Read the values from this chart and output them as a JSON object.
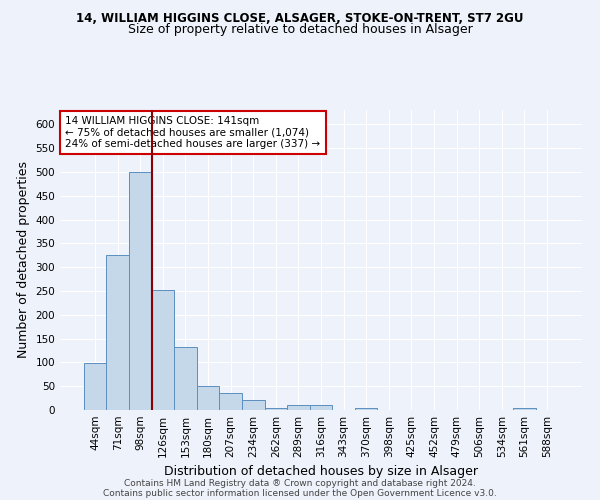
{
  "title_line1": "14, WILLIAM HIGGINS CLOSE, ALSAGER, STOKE-ON-TRENT, ST7 2GU",
  "title_line2": "Size of property relative to detached houses in Alsager",
  "xlabel": "Distribution of detached houses by size in Alsager",
  "ylabel": "Number of detached properties",
  "categories": [
    "44sqm",
    "71sqm",
    "98sqm",
    "126sqm",
    "153sqm",
    "180sqm",
    "207sqm",
    "234sqm",
    "262sqm",
    "289sqm",
    "316sqm",
    "343sqm",
    "370sqm",
    "398sqm",
    "425sqm",
    "452sqm",
    "479sqm",
    "506sqm",
    "534sqm",
    "561sqm",
    "588sqm"
  ],
  "values": [
    98,
    325,
    500,
    252,
    133,
    51,
    35,
    21,
    5,
    10,
    10,
    0,
    5,
    0,
    0,
    0,
    0,
    0,
    0,
    5,
    0
  ],
  "bar_color": "#c5d8ea",
  "bar_edge_color": "#5a8fc0",
  "vline_color": "#8b0000",
  "vline_x": 2.5,
  "annotation_text": "14 WILLIAM HIGGINS CLOSE: 141sqm\n← 75% of detached houses are smaller (1,074)\n24% of semi-detached houses are larger (337) →",
  "annotation_box_color": "white",
  "annotation_box_edge": "#cc0000",
  "ylim": [
    0,
    630
  ],
  "yticks": [
    0,
    50,
    100,
    150,
    200,
    250,
    300,
    350,
    400,
    450,
    500,
    550,
    600
  ],
  "footnote1": "Contains HM Land Registry data ® Crown copyright and database right 2024.",
  "footnote2": "Contains public sector information licensed under the Open Government Licence v3.0.",
  "bg_color": "#eef2fa",
  "grid_color": "white",
  "title1_fontsize": 8.5,
  "title2_fontsize": 9,
  "label_fontsize": 9,
  "tick_fontsize": 7.5,
  "annot_fontsize": 7.5,
  "footnote_fontsize": 6.5
}
